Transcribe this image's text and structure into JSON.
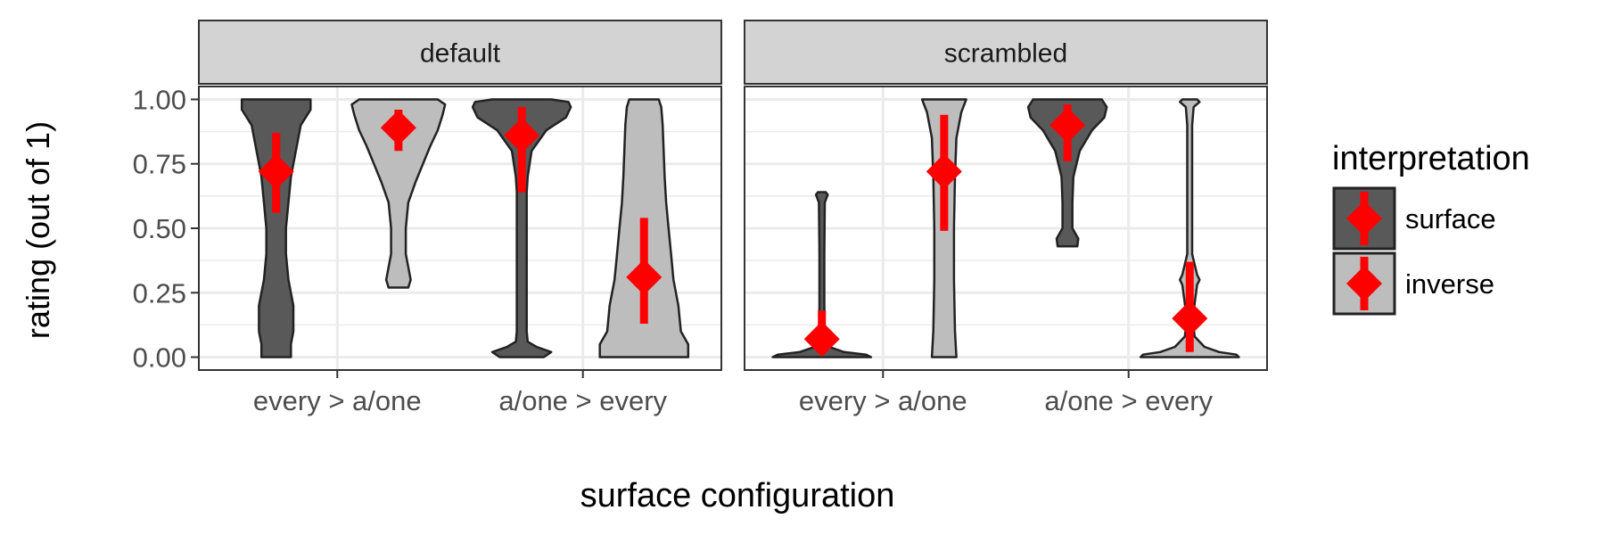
{
  "chart_data": {
    "type": "violin",
    "ylabel": "rating (out of 1)",
    "xlabel": "surface configuration",
    "ylim": [
      -0.05,
      1.05
    ],
    "y_ticks": [
      "0.00",
      "0.25",
      "0.50",
      "0.75",
      "1.00"
    ],
    "categories": [
      "every > a/one",
      "a/one > every"
    ],
    "grid": true,
    "legend": {
      "title": "interpretation",
      "position": "right",
      "entries": [
        {
          "label": "surface",
          "fill": "#595959"
        },
        {
          "label": "inverse",
          "fill": "#bdbdbd"
        }
      ]
    },
    "marker_color": "#ff0000",
    "facets": [
      {
        "label": "default",
        "groups": [
          {
            "category": "every > a/one",
            "interpretation": "surface",
            "mean": 0.72,
            "ci": [
              0.56,
              0.87
            ],
            "density": [
              [
                0.0,
                0.3
              ],
              [
                0.05,
                0.3
              ],
              [
                0.1,
                0.35
              ],
              [
                0.2,
                0.35
              ],
              [
                0.3,
                0.25
              ],
              [
                0.4,
                0.2
              ],
              [
                0.5,
                0.2
              ],
              [
                0.6,
                0.25
              ],
              [
                0.7,
                0.3
              ],
              [
                0.8,
                0.4
              ],
              [
                0.9,
                0.5
              ],
              [
                0.96,
                0.7
              ],
              [
                1.0,
                0.7
              ]
            ]
          },
          {
            "category": "every > a/one",
            "interpretation": "inverse",
            "mean": 0.89,
            "ci": [
              0.8,
              0.96
            ],
            "density": [
              [
                0.27,
                0.2
              ],
              [
                0.3,
                0.25
              ],
              [
                0.4,
                0.15
              ],
              [
                0.5,
                0.15
              ],
              [
                0.6,
                0.2
              ],
              [
                0.68,
                0.35
              ],
              [
                0.75,
                0.5
              ],
              [
                0.82,
                0.65
              ],
              [
                0.88,
                0.8
              ],
              [
                0.94,
                0.9
              ],
              [
                0.98,
                0.95
              ],
              [
                1.0,
                0.8
              ]
            ]
          },
          {
            "category": "a/one > every",
            "interpretation": "surface",
            "mean": 0.86,
            "ci": [
              0.64,
              0.97
            ],
            "density": [
              [
                0.0,
                0.45
              ],
              [
                0.02,
                0.6
              ],
              [
                0.04,
                0.3
              ],
              [
                0.06,
                0.12
              ],
              [
                0.1,
                0.1
              ],
              [
                0.3,
                0.1
              ],
              [
                0.5,
                0.1
              ],
              [
                0.64,
                0.1
              ],
              [
                0.7,
                0.12
              ],
              [
                0.8,
                0.2
              ],
              [
                0.88,
                0.5
              ],
              [
                0.93,
                0.9
              ],
              [
                0.97,
                1.0
              ],
              [
                0.99,
                0.95
              ],
              [
                1.0,
                0.6
              ]
            ]
          },
          {
            "category": "a/one > every",
            "interpretation": "inverse",
            "mean": 0.31,
            "ci": [
              0.13,
              0.54
            ],
            "density": [
              [
                0.0,
                0.9
              ],
              [
                0.05,
                0.9
              ],
              [
                0.1,
                0.75
              ],
              [
                0.2,
                0.7
              ],
              [
                0.3,
                0.6
              ],
              [
                0.4,
                0.55
              ],
              [
                0.5,
                0.5
              ],
              [
                0.6,
                0.45
              ],
              [
                0.7,
                0.42
              ],
              [
                0.8,
                0.4
              ],
              [
                0.9,
                0.38
              ],
              [
                0.97,
                0.35
              ],
              [
                1.0,
                0.3
              ]
            ]
          }
        ]
      },
      {
        "label": "scrambled",
        "groups": [
          {
            "category": "every > a/one",
            "interpretation": "surface",
            "mean": 0.07,
            "ci": [
              0.02,
              0.18
            ],
            "density": [
              [
                0.0,
                1.0
              ],
              [
                0.01,
                0.9
              ],
              [
                0.02,
                0.45
              ],
              [
                0.04,
                0.15
              ],
              [
                0.08,
                0.06
              ],
              [
                0.2,
                0.05
              ],
              [
                0.4,
                0.05
              ],
              [
                0.6,
                0.06
              ],
              [
                0.63,
                0.12
              ],
              [
                0.64,
                0.08
              ]
            ]
          },
          {
            "category": "every > a/one",
            "interpretation": "inverse",
            "mean": 0.72,
            "ci": [
              0.49,
              0.94
            ],
            "density": [
              [
                0.0,
                0.25
              ],
              [
                0.1,
                0.22
              ],
              [
                0.3,
                0.2
              ],
              [
                0.5,
                0.2
              ],
              [
                0.7,
                0.22
              ],
              [
                0.85,
                0.25
              ],
              [
                0.95,
                0.35
              ],
              [
                1.0,
                0.45
              ]
            ]
          },
          {
            "category": "a/one > every",
            "interpretation": "surface",
            "mean": 0.9,
            "ci": [
              0.76,
              0.98
            ],
            "density": [
              [
                0.43,
                0.2
              ],
              [
                0.46,
                0.22
              ],
              [
                0.5,
                0.1
              ],
              [
                0.6,
                0.1
              ],
              [
                0.7,
                0.12
              ],
              [
                0.8,
                0.25
              ],
              [
                0.88,
                0.5
              ],
              [
                0.93,
                0.75
              ],
              [
                0.97,
                0.8
              ],
              [
                1.0,
                0.7
              ]
            ]
          },
          {
            "category": "a/one > every",
            "interpretation": "inverse",
            "mean": 0.15,
            "ci": [
              0.02,
              0.37
            ],
            "density": [
              [
                0.0,
                1.0
              ],
              [
                0.01,
                0.95
              ],
              [
                0.02,
                0.6
              ],
              [
                0.04,
                0.3
              ],
              [
                0.08,
                0.1
              ],
              [
                0.15,
                0.06
              ],
              [
                0.28,
                0.15
              ],
              [
                0.3,
                0.2
              ],
              [
                0.32,
                0.15
              ],
              [
                0.4,
                0.05
              ],
              [
                0.7,
                0.05
              ],
              [
                0.9,
                0.05
              ],
              [
                0.97,
                0.08
              ],
              [
                0.99,
                0.2
              ],
              [
                1.0,
                0.15
              ]
            ]
          }
        ]
      }
    ]
  }
}
